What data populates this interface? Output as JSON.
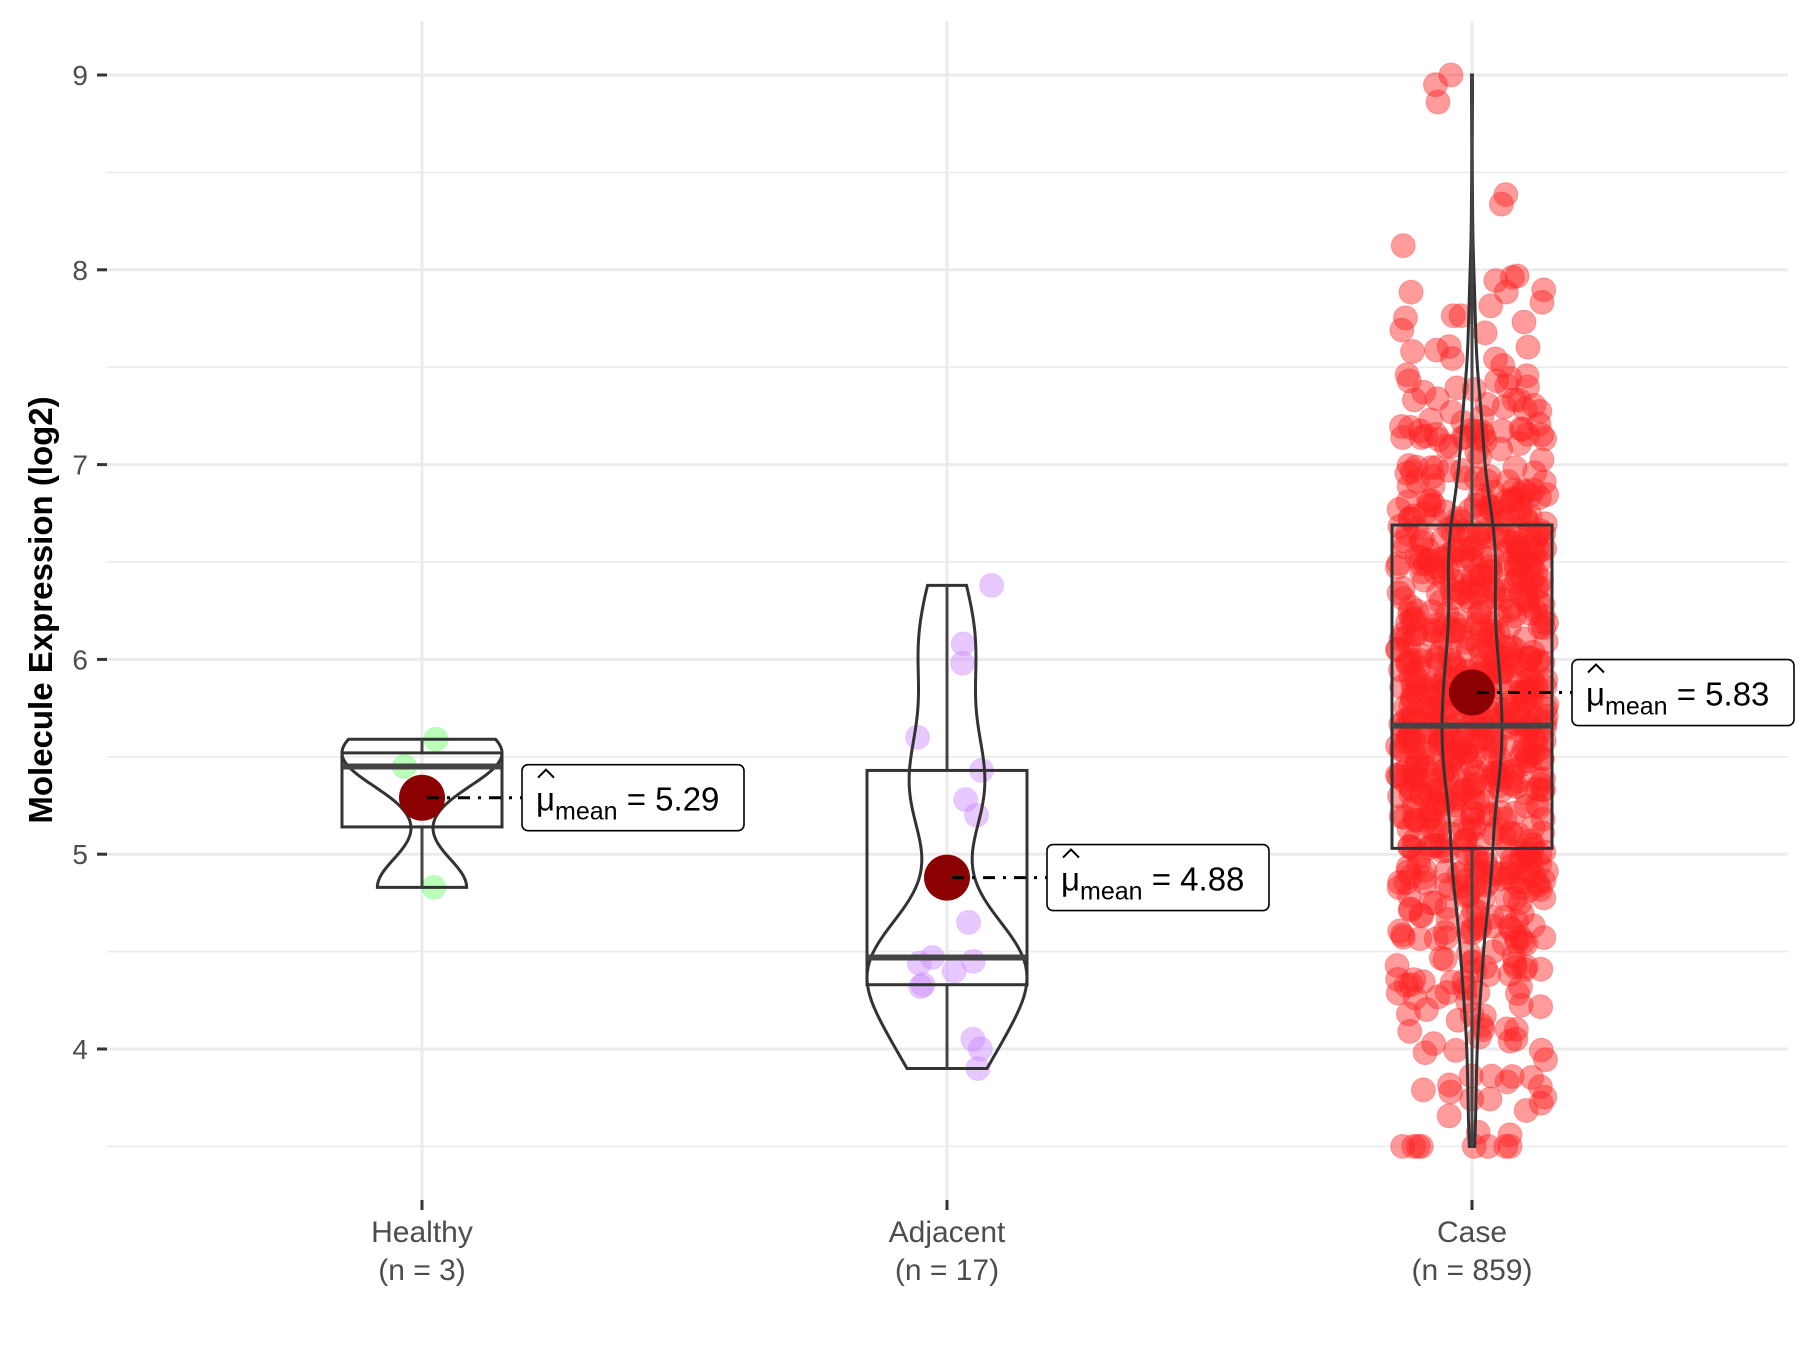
{
  "chart_data": {
    "type": "violin-box-jitter",
    "ylabel": "Molecule Expression (log2)",
    "xlabel": "",
    "ylim": [
      3.35,
      9.25
    ],
    "yticks": [
      "4",
      "5",
      "6",
      "7",
      "8",
      "9"
    ],
    "grid": true,
    "mean_symbol": "μ",
    "mean_subscript": "mean",
    "groups": [
      {
        "name": "Healthy",
        "n_label": "(n = 3)",
        "color": "#66ff66",
        "mean": 5.29,
        "mean_label": "5.29",
        "box": {
          "min": 4.83,
          "q1": 5.14,
          "median": 5.45,
          "q3": 5.52,
          "max": 5.59
        },
        "points": [
          5.59,
          5.45,
          4.83
        ]
      },
      {
        "name": "Adjacent",
        "n_label": "(n = 17)",
        "color": "#cc88ff",
        "mean": 4.88,
        "mean_label": "4.88",
        "box": {
          "min": 3.9,
          "q1": 4.33,
          "median": 4.47,
          "q3": 5.43,
          "max": 6.38
        },
        "points": [
          6.38,
          6.08,
          5.98,
          5.6,
          5.43,
          5.28,
          5.2,
          4.65,
          4.47,
          4.45,
          4.44,
          4.4,
          4.33,
          4.32,
          4.05,
          4.0,
          3.9
        ]
      },
      {
        "name": "Case",
        "n_label": "(n = 859)",
        "color": "#ff2222",
        "mean": 5.83,
        "mean_label": "5.83",
        "box": {
          "min": 3.5,
          "q1": 5.03,
          "median": 5.66,
          "q3": 6.69,
          "max": 9.0
        },
        "n": 859
      }
    ],
    "mean_color": "#8b0000"
  }
}
